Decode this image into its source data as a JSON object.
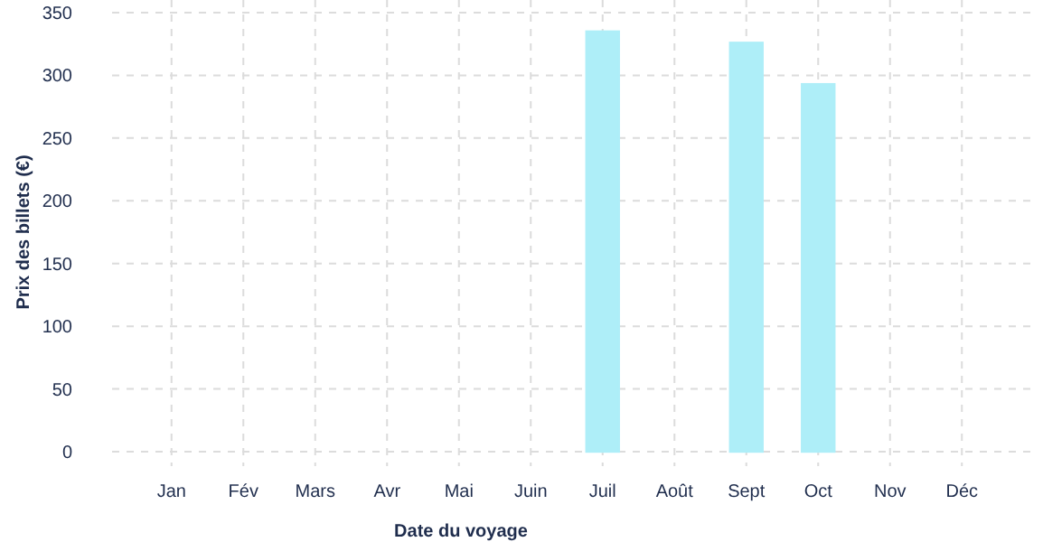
{
  "chart_data": {
    "type": "bar",
    "xlabel": "Date du voyage",
    "ylabel": "Prix des billets (€)",
    "categories": [
      "Jan",
      "Fév",
      "Mars",
      "Avr",
      "Mai",
      "Juin",
      "Juil",
      "Août",
      "Sept",
      "Oct",
      "Nov",
      "Déc"
    ],
    "values": [
      0,
      0,
      0,
      0,
      0,
      0,
      335,
      0,
      326,
      293,
      0,
      0
    ],
    "color": "#aeeef8",
    "ylim": [
      0,
      350
    ],
    "yticks": [
      0,
      50,
      100,
      150,
      200,
      250,
      300,
      350
    ],
    "grid": true
  }
}
